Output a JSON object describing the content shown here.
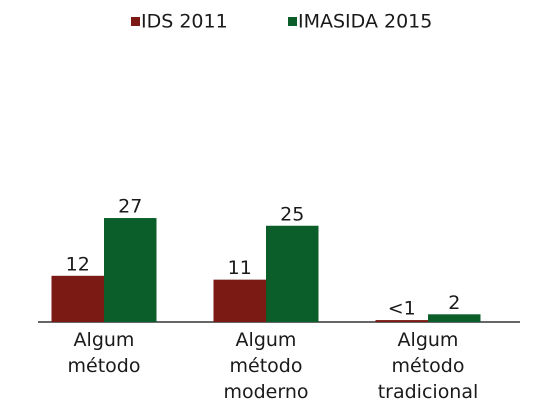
{
  "chart_data": {
    "type": "bar",
    "categories": [
      "Algum\nmétodo",
      "Algum\nmétodo\nmoderno",
      "Algum\nmétodo\ntradicional"
    ],
    "series": [
      {
        "name": "IDS 2011",
        "color": "#7b1a14",
        "values": [
          12,
          11,
          0.5
        ],
        "value_labels": [
          "12",
          "11",
          "<1"
        ]
      },
      {
        "name": "IMASIDA 2015",
        "color": "#0b5e2a",
        "values": [
          27,
          25,
          2
        ]
      }
    ],
    "ylim": [
      0,
      70
    ]
  }
}
